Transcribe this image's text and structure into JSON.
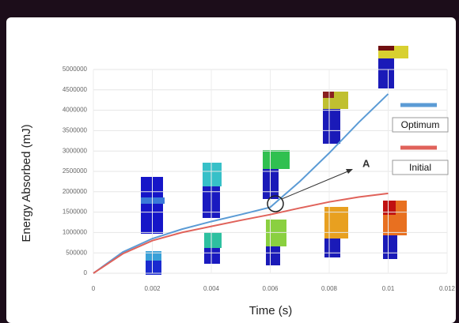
{
  "chart_data": {
    "type": "line",
    "x_label": "Time (s)",
    "y_label": "Energy Absorbed (mJ)",
    "annotation": "A",
    "x": [
      0,
      0.001,
      0.002,
      0.003,
      0.004,
      0.005,
      0.006,
      0.007,
      0.008,
      0.009,
      0.01
    ],
    "series": [
      {
        "name": "Optimum",
        "color": "#5b9bd5",
        "values": [
          0,
          520000,
          850000,
          1080000,
          1270000,
          1440000,
          1620000,
          2250000,
          2950000,
          3700000,
          4400000
        ]
      },
      {
        "name": "Initial",
        "color": "#e0625a",
        "values": [
          0,
          480000,
          800000,
          1000000,
          1150000,
          1300000,
          1440000,
          1600000,
          1750000,
          1870000,
          1960000
        ]
      }
    ],
    "xlim": [
      0,
      0.012
    ],
    "xticks": [
      0,
      0.002,
      0.004,
      0.006,
      0.008,
      0.01,
      0.012
    ],
    "ylim": [
      0,
      5000000
    ],
    "yticks": [
      0,
      500000,
      1000000,
      1500000,
      2000000,
      2500000,
      3000000,
      3500000,
      4000000,
      4500000,
      5000000
    ],
    "grid": true
  }
}
